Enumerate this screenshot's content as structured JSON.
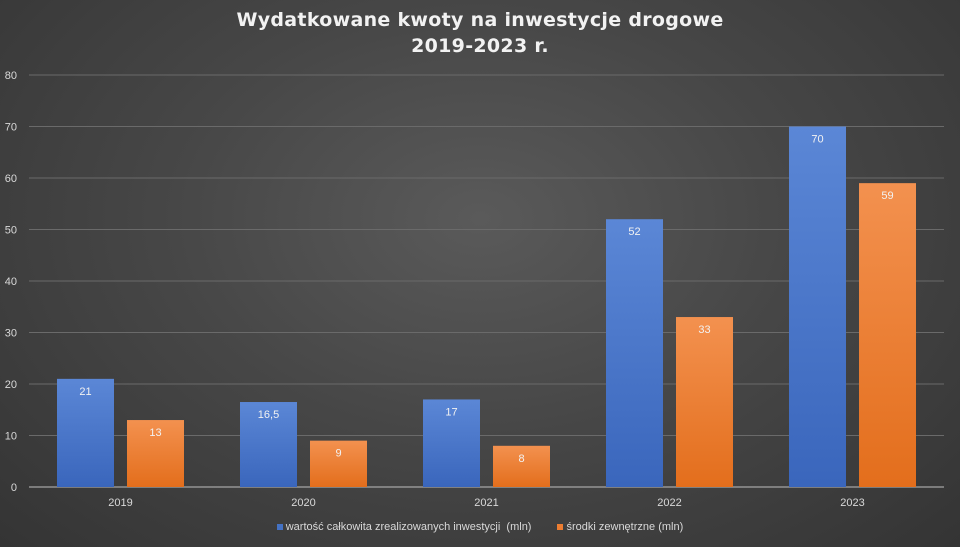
{
  "chart_data": {
    "type": "bar",
    "title": "Wydatkowane kwoty na inwestycje drogowe",
    "subtitle": "2019-2023 r.",
    "categories": [
      "2019",
      "2020",
      "2021",
      "2022",
      "2023"
    ],
    "series": [
      {
        "name": "wartość całkowita zrealizowanych inwestycji  (mln)",
        "values": [
          21,
          16.5,
          17,
          52,
          70
        ],
        "labels": [
          "21",
          "16,5",
          "17",
          "52",
          "70"
        ],
        "color": "#4472c4"
      },
      {
        "name": "środki zewnętrzne (mln)",
        "values": [
          13,
          9,
          8,
          33,
          59
        ],
        "labels": [
          "13",
          "9",
          "8",
          "33",
          "59"
        ],
        "color": "#ed7d31"
      }
    ],
    "ylim": [
      0,
      80
    ],
    "yticks": [
      0,
      10,
      20,
      30,
      40,
      50,
      60,
      70,
      80
    ],
    "xlabel": "",
    "ylabel": "",
    "grid": true,
    "legend_position": "bottom"
  }
}
